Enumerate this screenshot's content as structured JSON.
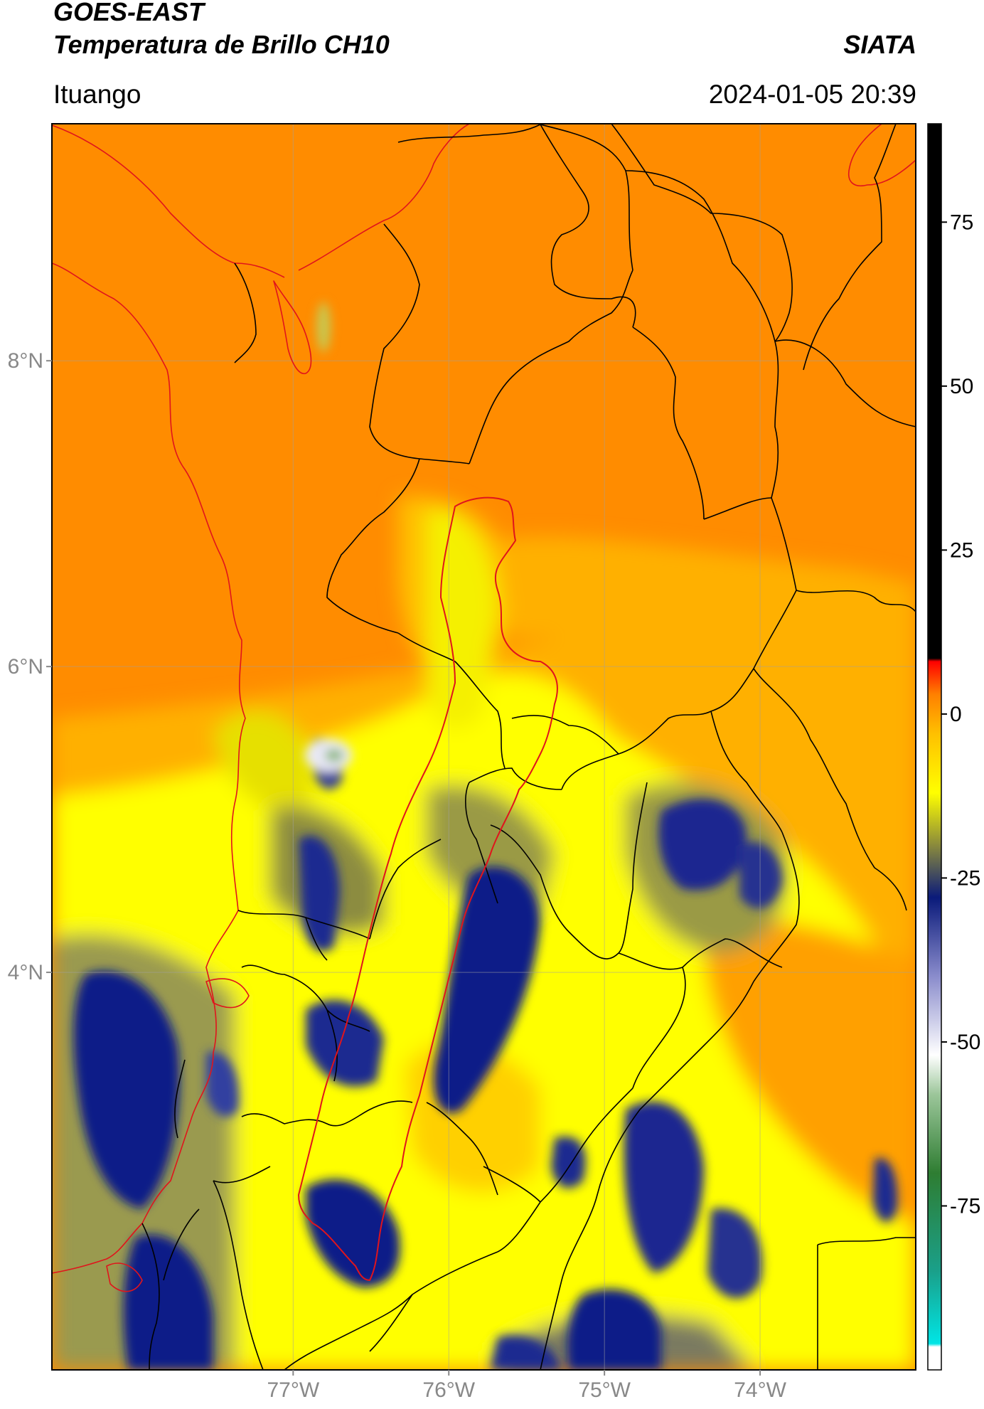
{
  "header": {
    "satellite": "GOES-EAST",
    "product": "Temperatura de Brillo CH10",
    "organization": "SIATA",
    "region": "Ituango",
    "timestamp": "2024-01-05 20:39"
  },
  "map": {
    "lon_range": [
      -78.55,
      -73.0
    ],
    "lat_range": [
      1.4,
      9.55
    ],
    "lat_ticks": [
      {
        "value": 8,
        "label": "8°N"
      },
      {
        "value": 6,
        "label": "6°N"
      },
      {
        "value": 4,
        "label": "4°N"
      }
    ],
    "lon_ticks": [
      {
        "value": -77,
        "label": "77°W"
      },
      {
        "value": -76,
        "label": "76°W"
      },
      {
        "value": -75,
        "label": "75°W"
      },
      {
        "value": -74,
        "label": "74°W"
      }
    ],
    "gridlines": true,
    "colors": {
      "coastline": "#e0141c",
      "boundaries": "#000000",
      "basin_outline": "#e0141c"
    }
  },
  "colorbar": {
    "range": [
      -100,
      90
    ],
    "ticks": [
      {
        "value": 75,
        "label": "75"
      },
      {
        "value": 50,
        "label": "50"
      },
      {
        "value": 25,
        "label": "25"
      },
      {
        "value": 0,
        "label": "0"
      },
      {
        "value": -25,
        "label": "-25"
      },
      {
        "value": -50,
        "label": "-50"
      },
      {
        "value": -75,
        "label": "-75"
      }
    ],
    "stops": [
      {
        "value": -100,
        "color": "#ffffff"
      },
      {
        "value": -96.5,
        "color": "#ffffff"
      },
      {
        "value": -96,
        "color": "#00e5e5"
      },
      {
        "value": -85,
        "color": "#1aa08a"
      },
      {
        "value": -70,
        "color": "#2e7d32"
      },
      {
        "value": -58,
        "color": "#9cc69a"
      },
      {
        "value": -52,
        "color": "#ffffff"
      },
      {
        "value": -40,
        "color": "#8a8ccc"
      },
      {
        "value": -28,
        "color": "#0a1a7a"
      },
      {
        "value": -20,
        "color": "#8a8a3c"
      },
      {
        "value": -12,
        "color": "#ffff00"
      },
      {
        "value": -3,
        "color": "#ffc000"
      },
      {
        "value": 3,
        "color": "#ff8000"
      },
      {
        "value": 8,
        "color": "#ff0000"
      },
      {
        "value": 8.5,
        "color": "#000000"
      },
      {
        "value": 90,
        "color": "#000000"
      }
    ]
  }
}
